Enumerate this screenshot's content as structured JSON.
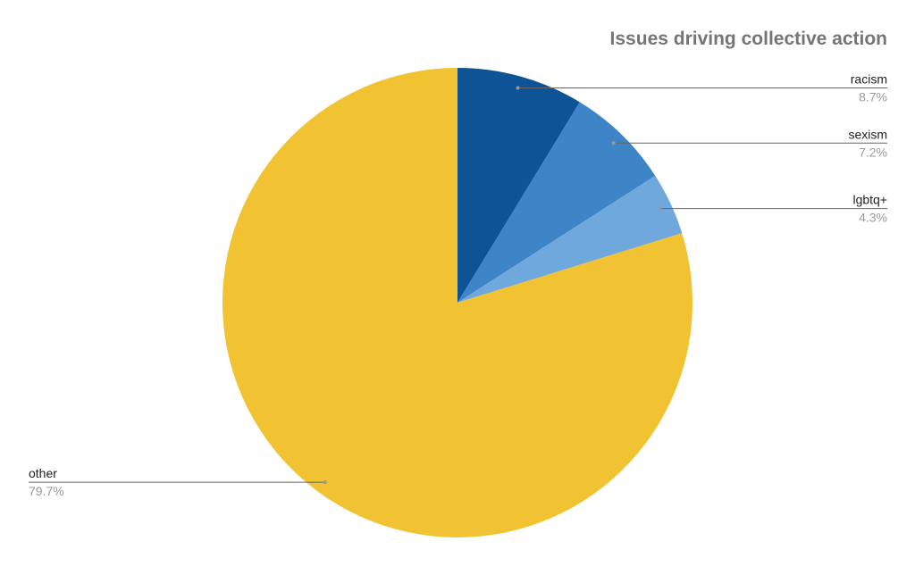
{
  "chart_data": {
    "type": "pie",
    "title": "Issues driving collective action",
    "categories": [
      "racism",
      "sexism",
      "lgbtq+",
      "other"
    ],
    "values": [
      8.7,
      7.2,
      4.3,
      79.7
    ],
    "value_labels": [
      "8.7%",
      "7.2%",
      "4.3%",
      "79.7%"
    ],
    "colors": [
      "#0d5395",
      "#3d85c6",
      "#6fa8dc",
      "#f1c232"
    ]
  }
}
